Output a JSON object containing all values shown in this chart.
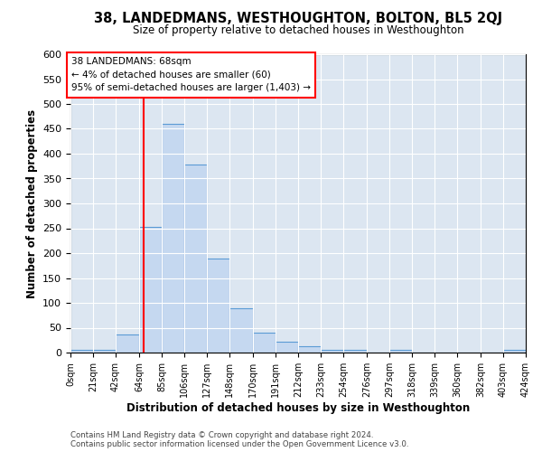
{
  "title": "38, LANDEDMANS, WESTHOUGHTON, BOLTON, BL5 2QJ",
  "subtitle": "Size of property relative to detached houses in Westhoughton",
  "xlabel": "Distribution of detached houses by size in Westhoughton",
  "ylabel": "Number of detached properties",
  "footnote1": "Contains HM Land Registry data © Crown copyright and database right 2024.",
  "footnote2": "Contains public sector information licensed under the Open Government Licence v3.0.",
  "annotation_title": "38 LANDEDMANS: 68sqm",
  "annotation_line2": "← 4% of detached houses are smaller (60)",
  "annotation_line3": "95% of semi-detached houses are larger (1,403) →",
  "bar_color": "#c5d8f0",
  "bar_edge_color": "#5b9bd5",
  "vline_color": "red",
  "vline_x": 68,
  "grid_color": "#ffffff",
  "bg_color": "#dce6f1",
  "bin_edges": [
    0,
    21,
    42,
    64,
    85,
    106,
    127,
    148,
    170,
    191,
    212,
    233,
    254,
    276,
    297,
    318,
    339,
    360,
    382,
    403,
    424
  ],
  "bin_labels": [
    "0sqm",
    "21sqm",
    "42sqm",
    "64sqm",
    "85sqm",
    "106sqm",
    "127sqm",
    "148sqm",
    "170sqm",
    "191sqm",
    "212sqm",
    "233sqm",
    "254sqm",
    "276sqm",
    "297sqm",
    "318sqm",
    "339sqm",
    "360sqm",
    "382sqm",
    "403sqm",
    "424sqm"
  ],
  "counts": [
    5,
    5,
    37,
    253,
    460,
    379,
    190,
    89,
    40,
    21,
    12,
    5,
    5,
    0,
    5,
    0,
    0,
    0,
    0,
    5
  ],
  "ylim": [
    0,
    600
  ],
  "yticks": [
    0,
    50,
    100,
    150,
    200,
    250,
    300,
    350,
    400,
    450,
    500,
    550,
    600
  ]
}
